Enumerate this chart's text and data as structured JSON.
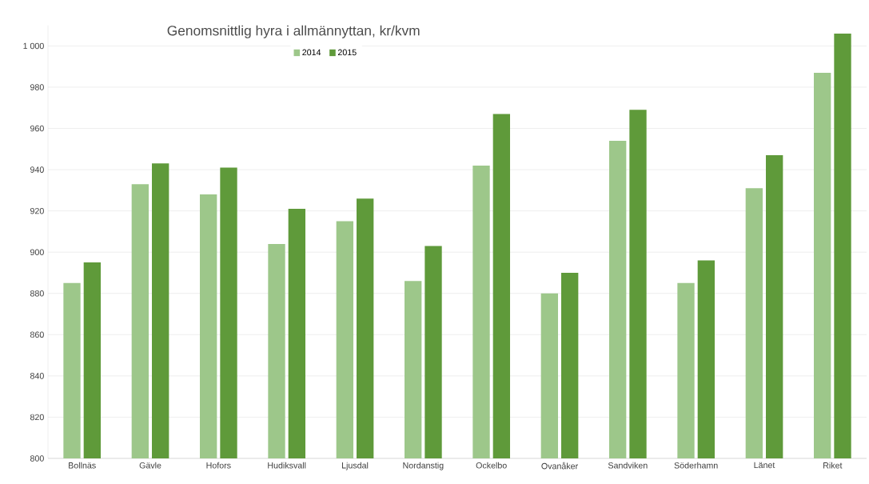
{
  "chart_data": {
    "type": "bar",
    "title": "Genomsnittlig hyra i allmännyttan, kr/kvm",
    "categories": [
      "Bollnäs",
      "Gävle",
      "Hofors",
      "Hudiksvall",
      "Ljusdal",
      "Nordanstig",
      "Ockelbo",
      "Ovanåker",
      "Sandviken",
      "Söderhamn",
      "Länet",
      "Riket"
    ],
    "series": [
      {
        "name": "2014",
        "color": "#9dc78a",
        "values": [
          885,
          933,
          928,
          904,
          915,
          886,
          942,
          880,
          954,
          885,
          931,
          987
        ]
      },
      {
        "name": "2015",
        "color": "#5f9a3a",
        "values": [
          895,
          943,
          941,
          921,
          926,
          903,
          967,
          890,
          969,
          896,
          947,
          1006
        ]
      }
    ],
    "ylim": [
      800,
      1010
    ],
    "yticks": [
      800,
      820,
      840,
      860,
      880,
      900,
      920,
      940,
      960,
      980,
      {
        "value": 1000,
        "label": "1 000"
      }
    ],
    "grid": "y",
    "legend": "top"
  }
}
